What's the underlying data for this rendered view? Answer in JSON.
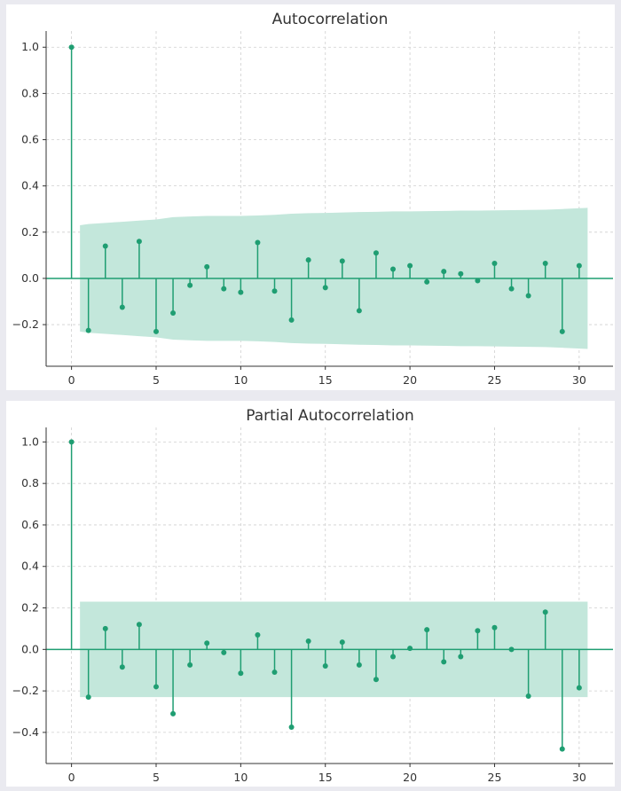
{
  "colors": {
    "stem": "#1f9e72",
    "band": "#c3e7db",
    "zero_line": "#1f9e72"
  },
  "chart_data": [
    {
      "type": "stem",
      "title": "Autocorrelation",
      "x": [
        0,
        1,
        2,
        3,
        4,
        5,
        6,
        7,
        8,
        9,
        10,
        11,
        12,
        13,
        14,
        15,
        16,
        17,
        18,
        19,
        20,
        21,
        22,
        23,
        24,
        25,
        26,
        27,
        28,
        29,
        30
      ],
      "values": [
        1.0,
        -0.225,
        0.14,
        -0.125,
        0.16,
        -0.23,
        -0.15,
        -0.03,
        0.05,
        -0.045,
        -0.06,
        0.155,
        -0.055,
        -0.18,
        0.08,
        -0.04,
        0.075,
        -0.14,
        0.11,
        0.04,
        0.055,
        -0.015,
        0.03,
        0.02,
        -0.01,
        0.065,
        -0.045,
        -0.075,
        0.065,
        -0.23,
        0.055
      ],
      "confidence_band": [
        0.23,
        0.235,
        0.24,
        0.245,
        0.25,
        0.255,
        0.265,
        0.268,
        0.27,
        0.27,
        0.27,
        0.272,
        0.275,
        0.28,
        0.282,
        0.283,
        0.285,
        0.287,
        0.288,
        0.29,
        0.29,
        0.291,
        0.292,
        0.293,
        0.293,
        0.294,
        0.295,
        0.296,
        0.297,
        0.3,
        0.305
      ],
      "xlim": [
        -1.5,
        32
      ],
      "ylim": [
        -0.38,
        1.07
      ],
      "xticks": [
        "0",
        "5",
        "10",
        "15",
        "20",
        "25",
        "30"
      ],
      "yticks": [
        "−0.2",
        "0.0",
        "0.2",
        "0.4",
        "0.6",
        "0.8",
        "1.0"
      ],
      "grid": true
    },
    {
      "type": "stem",
      "title": "Partial Autocorrelation",
      "x": [
        0,
        1,
        2,
        3,
        4,
        5,
        6,
        7,
        8,
        9,
        10,
        11,
        12,
        13,
        14,
        15,
        16,
        17,
        18,
        19,
        20,
        21,
        22,
        23,
        24,
        25,
        26,
        27,
        28,
        29,
        30
      ],
      "values": [
        1.0,
        -0.23,
        0.1,
        -0.085,
        0.12,
        -0.18,
        -0.31,
        -0.075,
        0.03,
        -0.015,
        -0.115,
        0.07,
        -0.11,
        -0.375,
        0.04,
        -0.08,
        0.035,
        -0.075,
        -0.145,
        -0.035,
        0.005,
        0.095,
        -0.06,
        -0.035,
        0.09,
        0.105,
        0.0,
        -0.225,
        0.18,
        -0.48,
        -0.185
      ],
      "confidence_band": [
        0.23,
        0.23,
        0.23,
        0.23,
        0.23,
        0.23,
        0.23,
        0.23,
        0.23,
        0.23,
        0.23,
        0.23,
        0.23,
        0.23,
        0.23,
        0.23,
        0.23,
        0.23,
        0.23,
        0.23,
        0.23,
        0.23,
        0.23,
        0.23,
        0.23,
        0.23,
        0.23,
        0.23,
        0.23,
        0.23,
        0.23
      ],
      "xlim": [
        -1.5,
        32
      ],
      "ylim": [
        -0.55,
        1.07
      ],
      "xticks": [
        "0",
        "5",
        "10",
        "15",
        "20",
        "25",
        "30"
      ],
      "yticks": [
        "−0.4",
        "−0.2",
        "0.0",
        "0.2",
        "0.4",
        "0.6",
        "0.8",
        "1.0"
      ],
      "grid": true
    }
  ]
}
